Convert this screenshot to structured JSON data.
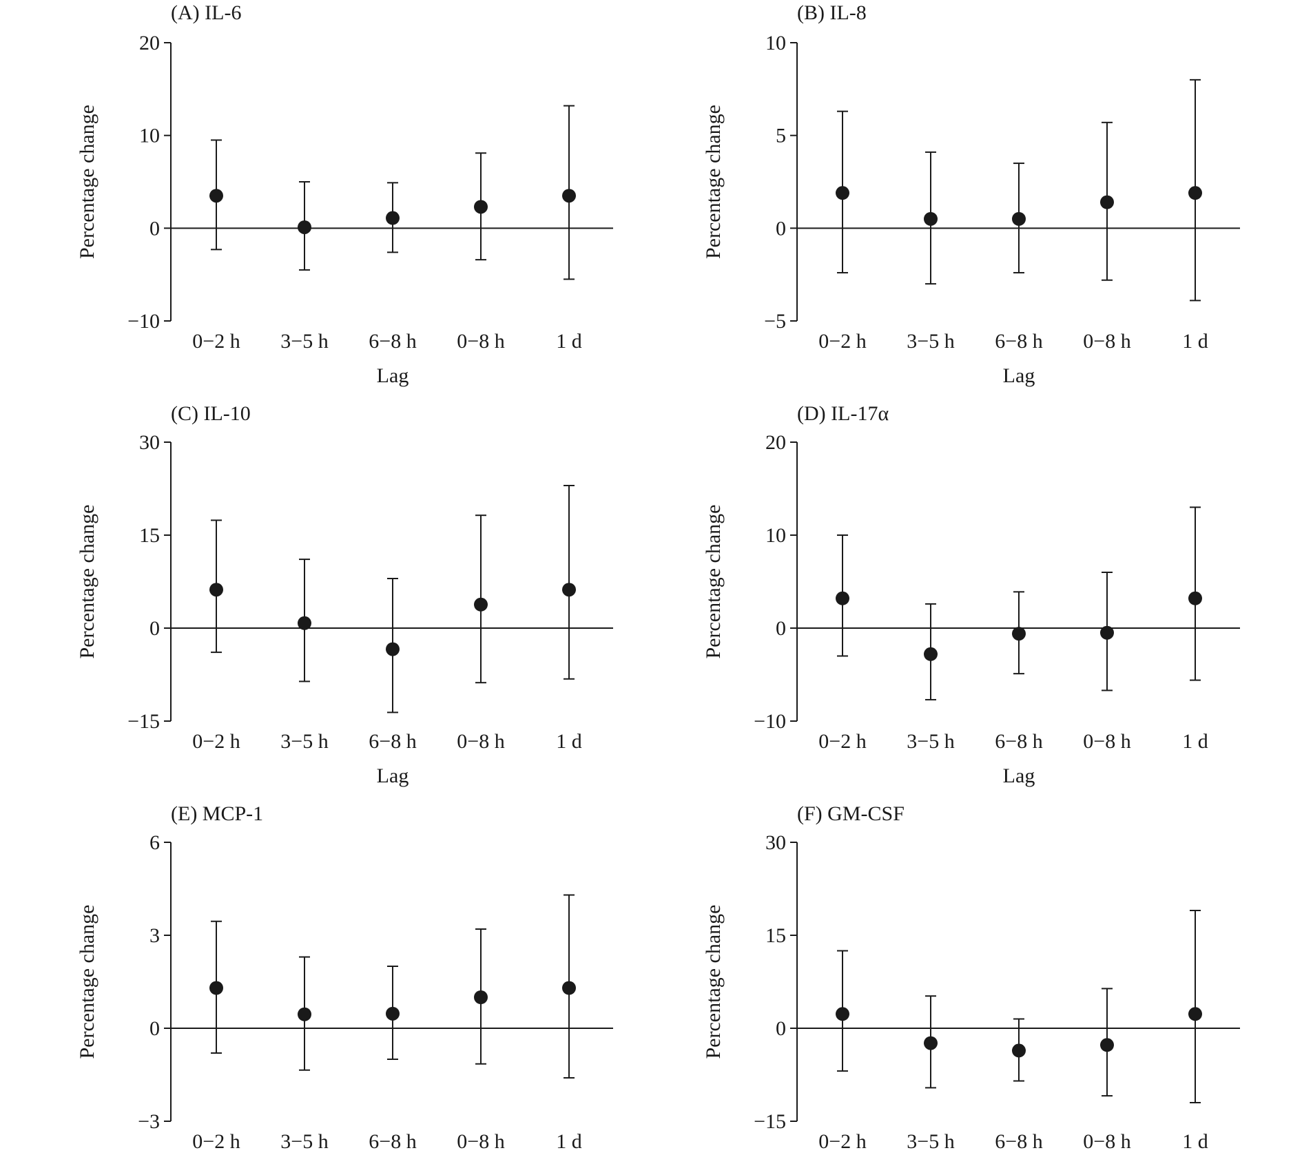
{
  "chart_data": [
    {
      "type": "scatter",
      "title": "(A) IL-6",
      "xlabel": "Lag",
      "ylabel": "Percentage change",
      "categories": [
        "0−2 h",
        "3−5 h",
        "6−8 h",
        "0−8 h",
        "1 d"
      ],
      "ylim": [
        -10,
        20
      ],
      "yticks": [
        "−10",
        "0",
        "10",
        "20"
      ],
      "yticks_values": [
        -10,
        0,
        10,
        20
      ],
      "series": [
        {
          "values": [
            3.5,
            0.1,
            1.1,
            2.3,
            3.5
          ],
          "lower": [
            -2.3,
            -4.5,
            -2.6,
            -3.4,
            -5.5
          ],
          "upper": [
            9.5,
            5.0,
            4.9,
            8.1,
            13.2
          ]
        }
      ]
    },
    {
      "type": "scatter",
      "title": "(B) IL-8",
      "xlabel": "Lag",
      "ylabel": "Percentage change",
      "categories": [
        "0−2 h",
        "3−5 h",
        "6−8 h",
        "0−8 h",
        "1 d"
      ],
      "ylim": [
        -5,
        10
      ],
      "yticks": [
        "−5",
        "0",
        "5",
        "10"
      ],
      "yticks_values": [
        -5,
        0,
        5,
        10
      ],
      "series": [
        {
          "values": [
            1.9,
            0.5,
            0.5,
            1.4,
            1.9
          ],
          "lower": [
            -2.4,
            -3.0,
            -2.4,
            -2.8,
            -3.9
          ],
          "upper": [
            6.3,
            4.1,
            3.5,
            5.7,
            8.0
          ]
        }
      ]
    },
    {
      "type": "scatter",
      "title": "(C) IL-10",
      "xlabel": "Lag",
      "ylabel": "Percentage change",
      "categories": [
        "0−2 h",
        "3−5 h",
        "6−8 h",
        "0−8 h",
        "1 d"
      ],
      "ylim": [
        -15,
        30
      ],
      "yticks": [
        "−15",
        "0",
        "15",
        "30"
      ],
      "yticks_values": [
        -15,
        0,
        15,
        30
      ],
      "series": [
        {
          "values": [
            6.2,
            0.8,
            -3.4,
            3.8,
            6.2
          ],
          "lower": [
            -3.9,
            -8.6,
            -13.6,
            -8.8,
            -8.2
          ],
          "upper": [
            17.4,
            11.1,
            8.0,
            18.2,
            23.0
          ]
        }
      ]
    },
    {
      "type": "scatter",
      "title": "(D) IL-17α",
      "xlabel": "Lag",
      "ylabel": "Percentage change",
      "categories": [
        "0−2 h",
        "3−5 h",
        "6−8 h",
        "0−8 h",
        "1 d"
      ],
      "ylim": [
        -10,
        20
      ],
      "yticks": [
        "−10",
        "0",
        "10",
        "20"
      ],
      "yticks_values": [
        -10,
        0,
        10,
        20
      ],
      "series": [
        {
          "values": [
            3.2,
            -2.8,
            -0.6,
            -0.5,
            3.2
          ],
          "lower": [
            -3.0,
            -7.7,
            -4.9,
            -6.7,
            -5.6
          ],
          "upper": [
            10.0,
            2.6,
            3.9,
            6.0,
            13.0
          ]
        }
      ]
    },
    {
      "type": "scatter",
      "title": "(E) MCP-1",
      "xlabel": "Lag",
      "ylabel": "Percentage change",
      "categories": [
        "0−2 h",
        "3−5 h",
        "6−8 h",
        "0−8 h",
        "1 d"
      ],
      "ylim": [
        -3,
        6
      ],
      "yticks": [
        "−3",
        "0",
        "3",
        "6"
      ],
      "yticks_values": [
        -3,
        0,
        3,
        6
      ],
      "series": [
        {
          "values": [
            1.3,
            0.45,
            0.47,
            1.0,
            1.3
          ],
          "lower": [
            -0.8,
            -1.35,
            -1.0,
            -1.15,
            -1.6
          ],
          "upper": [
            3.45,
            2.3,
            2.0,
            3.2,
            4.3
          ]
        }
      ]
    },
    {
      "type": "scatter",
      "title": "(F) GM-CSF",
      "xlabel": "Lag",
      "ylabel": "Percentage change",
      "categories": [
        "0−2 h",
        "3−5 h",
        "6−8 h",
        "0−8 h",
        "1 d"
      ],
      "ylim": [
        -15,
        30
      ],
      "yticks": [
        "−15",
        "0",
        "15",
        "30"
      ],
      "yticks_values": [
        -15,
        0,
        15,
        30
      ],
      "series": [
        {
          "values": [
            2.3,
            -2.4,
            -3.6,
            -2.7,
            2.3
          ],
          "lower": [
            -6.9,
            -9.6,
            -8.5,
            -10.9,
            -12.0
          ],
          "upper": [
            12.5,
            5.2,
            1.5,
            6.4,
            19.0
          ]
        }
      ]
    }
  ]
}
